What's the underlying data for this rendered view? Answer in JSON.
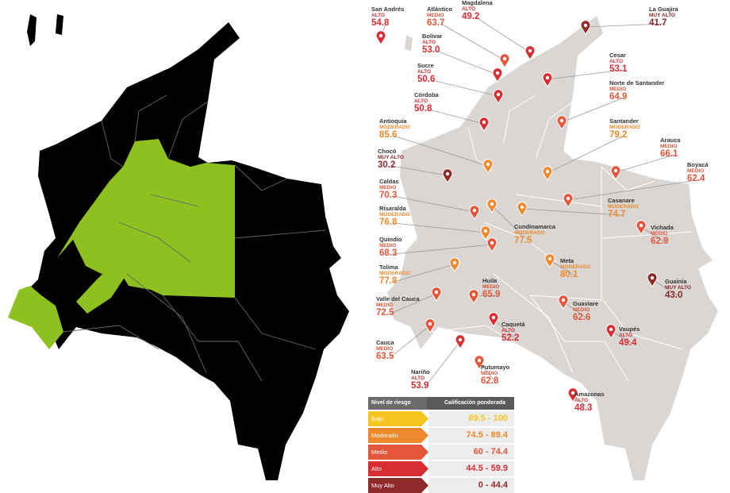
{
  "colors": {
    "bajo": "#f4c51e",
    "moderado": "#ef8a2c",
    "medio": "#e4573a",
    "alto": "#d62e33",
    "muy_alto": "#8e2a2a",
    "mask_map": "#000000",
    "mask_highlight": "#8ec11f",
    "base_map": "#d9d6d4"
  },
  "highlighted_regions": [
    "Antioquia",
    "Caldas",
    "Risaralda",
    "Quindío",
    "Tolima",
    "Cundinamarca",
    "Boyacá",
    "Huila",
    "Nariño"
  ],
  "departments": [
    {
      "name": "San Andrés",
      "risk": "ALTO",
      "score": "54.8"
    },
    {
      "name": "Atlántico",
      "risk": "MEDIO",
      "score": "63.7"
    },
    {
      "name": "Magdalena",
      "risk": "ALTO",
      "score": "49.2"
    },
    {
      "name": "La Guajira",
      "risk": "MUY ALTO",
      "score": "41.7"
    },
    {
      "name": "Bolívar",
      "risk": "ALTO",
      "score": "53.0"
    },
    {
      "name": "Sucre",
      "risk": "ALTO",
      "score": "50.6"
    },
    {
      "name": "Córdoba",
      "risk": "ALTO",
      "score": "50.8"
    },
    {
      "name": "Cesar",
      "risk": "ALTO",
      "score": "53.1"
    },
    {
      "name": "Norte de Santander",
      "risk": "MEDIO",
      "score": "64.9"
    },
    {
      "name": "Antioquia",
      "risk": "MODERADO",
      "score": "85.6"
    },
    {
      "name": "Santander",
      "risk": "MODERADO",
      "score": "79.2"
    },
    {
      "name": "Arauca",
      "risk": "MEDIO",
      "score": "66.1"
    },
    {
      "name": "Chocó",
      "risk": "MUY ALTO",
      "score": "30.2"
    },
    {
      "name": "Boyacá",
      "risk": "MEDIO",
      "score": "62.4"
    },
    {
      "name": "Caldas",
      "risk": "MEDIO",
      "score": "70.3"
    },
    {
      "name": "Casanare",
      "risk": "MODERADO",
      "score": "74.7"
    },
    {
      "name": "Risaralda",
      "risk": "MODERADO",
      "score": "76.8"
    },
    {
      "name": "Cundinamarca",
      "risk": "MODERADO",
      "score": "77.5"
    },
    {
      "name": "Vichada",
      "risk": "MEDIO",
      "score": "62.9"
    },
    {
      "name": "Quindío",
      "risk": "MEDIO",
      "score": "68.3"
    },
    {
      "name": "Tolima",
      "risk": "MODERADO",
      "score": "77.8"
    },
    {
      "name": "Meta",
      "risk": "MODERADO",
      "score": "80.1"
    },
    {
      "name": "Guainía",
      "risk": "MUY ALTO",
      "score": "43.0"
    },
    {
      "name": "Valle del Cauca",
      "risk": "MEDIO",
      "score": "72.5"
    },
    {
      "name": "Huila",
      "risk": "MEDIO",
      "score": "65.9"
    },
    {
      "name": "Guaviare",
      "risk": "MEDIO",
      "score": "62.6"
    },
    {
      "name": "Caquetá",
      "risk": "ALTO",
      "score": "52.2"
    },
    {
      "name": "Vaupés",
      "risk": "ALTO",
      "score": "49.4"
    },
    {
      "name": "Cauca",
      "risk": "MEDIO",
      "score": "63.5"
    },
    {
      "name": "Nariño",
      "risk": "ALTO",
      "score": "53.9"
    },
    {
      "name": "Putumayo",
      "risk": "MEDIO",
      "score": "62.8"
    },
    {
      "name": "Amazonas",
      "risk": "ALTO",
      "score": "48.3"
    }
  ],
  "legend": {
    "header_level": "Nivel de riesgo",
    "header_score": "Calificación ponderada",
    "rows": [
      {
        "label": "Bajo",
        "range": "89.5 - 100",
        "color": "#f4c51e"
      },
      {
        "label": "Moderado",
        "range": "74.5 - 89.4",
        "color": "#ef8a2c"
      },
      {
        "label": "Medio",
        "range": "60 - 74.4",
        "color": "#e4573a"
      },
      {
        "label": "Alto",
        "range": "44.5 - 59.9",
        "color": "#d62e33"
      },
      {
        "label": "Muy Alto",
        "range": "0 - 44.4",
        "color": "#8e2a2a"
      }
    ]
  }
}
